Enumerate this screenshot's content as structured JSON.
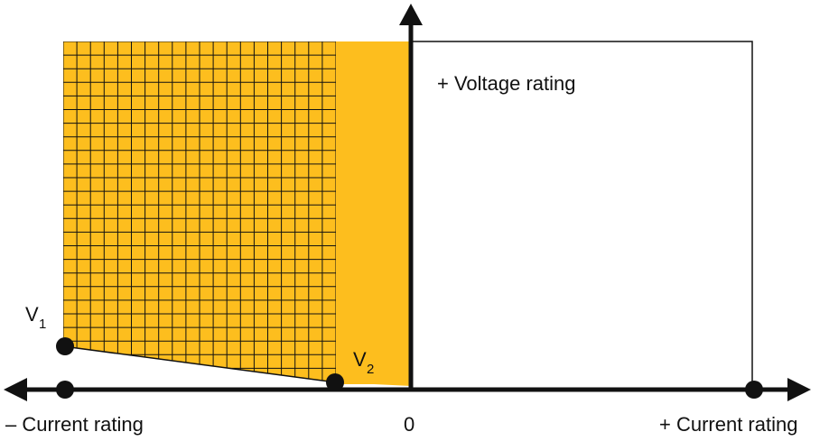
{
  "labels": {
    "voltage_rating": "+ Voltage rating",
    "neg_current_rating": "– Current rating",
    "pos_current_rating": "+ Current rating",
    "origin": "0",
    "v1_letter": "V",
    "v1_subscript": "1",
    "v2_letter": "V",
    "v2_subscript": "2"
  },
  "colors": {
    "fill": "#FDBE1E",
    "axis": "#111111",
    "grid_line": "#111111",
    "background": "#ffffff"
  }
}
